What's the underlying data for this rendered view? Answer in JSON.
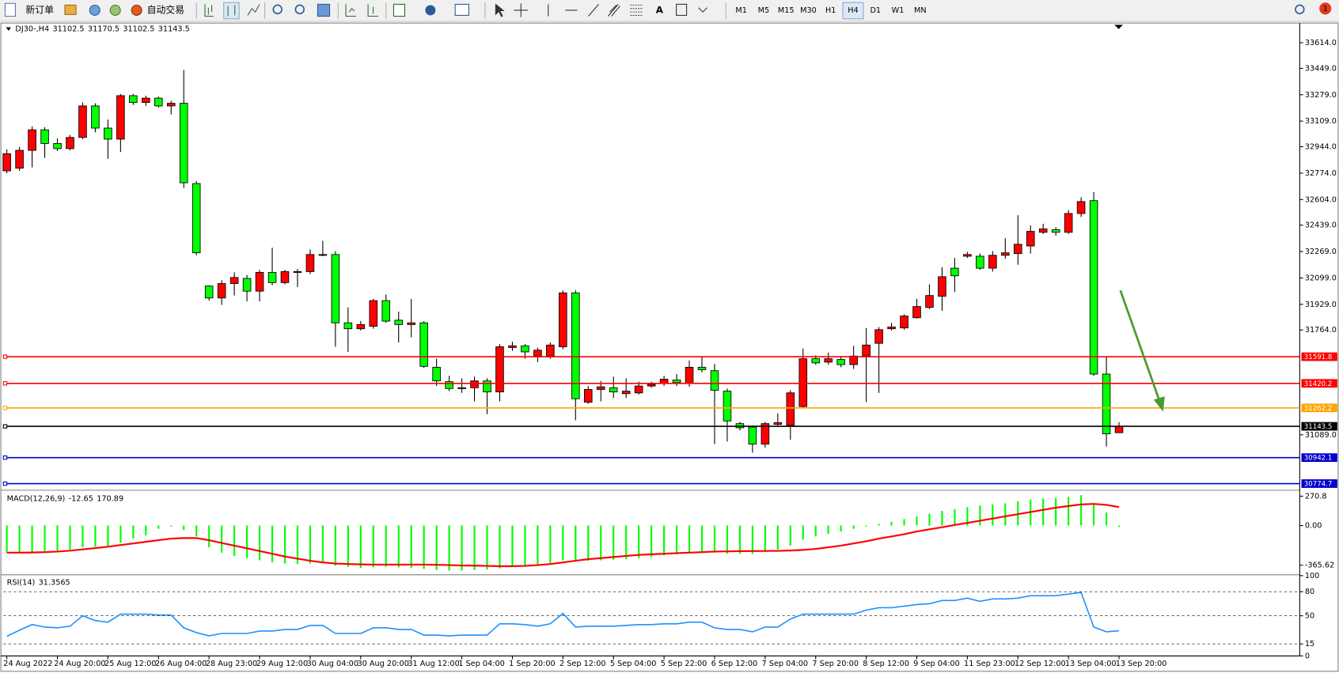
{
  "toolbar": {
    "buttons": [
      "新订单",
      "自动交易"
    ],
    "timeframes": [
      "M1",
      "M5",
      "M15",
      "M30",
      "H1",
      "H4",
      "D1",
      "W1",
      "MN"
    ],
    "active": "H4",
    "notifications": 1
  },
  "chart_data": [
    {
      "type": "candlestick",
      "symbol": "DJ30-,H4",
      "categories": [
        "24 Aug 2022",
        null,
        null,
        null,
        "24 Aug 20:00",
        null,
        null,
        null,
        "25 Aug 12:00",
        null,
        null,
        null,
        "26 Aug 04:00",
        null,
        null,
        null,
        "28 Aug 23:00",
        null,
        null,
        null,
        "29 Aug 12:00",
        null,
        null,
        null,
        "30 Aug 04:00",
        null,
        null,
        null,
        "30 Aug 20:00",
        null,
        null,
        null,
        "31 Aug 12:00",
        null,
        null,
        null,
        "1 Sep 04:00",
        null,
        null,
        null,
        "1 Sep 20:00",
        null,
        null,
        null,
        "2 Sep 12:00",
        null,
        null,
        null,
        "5 Sep 04:00",
        null,
        null,
        null,
        "5 Sep 22:00",
        null,
        null,
        null,
        "6 Sep 12:00",
        null,
        null,
        null,
        "7 Sep 04:00",
        null,
        null,
        null,
        "7 Sep 20:00",
        null,
        null,
        null,
        "8 Sep 12:00",
        null,
        null,
        null,
        "9 Sep 04:00",
        null,
        null,
        null,
        "11 Sep 23:00",
        null,
        null,
        null,
        "12 Sep 12:00",
        null,
        null,
        null,
        "13 Sep 04:00",
        null,
        null,
        null,
        "13 Sep 20:00"
      ],
      "open": [
        32789,
        32806,
        32921,
        33053,
        32965,
        32932,
        33004,
        33207,
        33064,
        32993,
        33273,
        33229,
        33257,
        33207,
        33224,
        32707,
        32047,
        31970,
        32063,
        32096,
        32014,
        32135,
        32069,
        32135,
        32140,
        32245,
        32250,
        31810,
        31772,
        31788,
        31953,
        31827,
        31799,
        31810,
        31524,
        31431,
        31387,
        31392,
        31436,
        31365,
        31651,
        31662,
        31596,
        31596,
        31656,
        32003,
        31299,
        31381,
        31392,
        31354,
        31359,
        31403,
        31420,
        31442,
        31420,
        31524,
        31502,
        31370,
        31161,
        31139,
        31029,
        31156,
        31150,
        31271,
        31579,
        31557,
        31574,
        31541,
        31596,
        31678,
        31772,
        31777,
        31843,
        31909,
        31981,
        32162,
        32239,
        32239,
        32162,
        32245,
        32256,
        32305,
        32393,
        32410,
        32393,
        32514,
        32597,
        31480,
        31102.5
      ],
      "high": [
        32927,
        32943,
        33075,
        33070,
        32998,
        33020,
        33229,
        33224,
        33119,
        33284,
        33284,
        33273,
        33268,
        33240,
        33438,
        32723,
        32052,
        32085,
        32135,
        32118,
        32151,
        32294,
        32151,
        32157,
        32283,
        32338,
        32272,
        31909,
        31821,
        31964,
        31992,
        31882,
        31964,
        31821,
        31579,
        31469,
        31453,
        31464,
        31453,
        31673,
        31689,
        31673,
        31651,
        31684,
        32019,
        32019,
        31403,
        31436,
        31464,
        31453,
        31431,
        31431,
        31469,
        31480,
        31568,
        31590,
        31546,
        31387,
        31172,
        31150,
        31172,
        31227,
        31376,
        31645,
        31601,
        31618,
        31596,
        31662,
        31777,
        31783,
        31810,
        31865,
        31964,
        32058,
        32168,
        32228,
        32267,
        32256,
        32272,
        32355,
        32503,
        32437,
        32448,
        32426,
        32536,
        32619,
        32652,
        31590,
        31170.5
      ],
      "low": [
        32773,
        32789,
        32811,
        32872,
        32916,
        32921,
        32993,
        33037,
        32866,
        32910,
        33213,
        33207,
        33196,
        33152,
        32679,
        32245,
        31953,
        31926,
        31986,
        31948,
        31948,
        32052,
        32058,
        32041,
        32124,
        32239,
        31656,
        31623,
        31761,
        31772,
        31810,
        31684,
        31717,
        31519,
        31403,
        31370,
        31359,
        31304,
        31222,
        31304,
        31629,
        31579,
        31557,
        31579,
        31640,
        31183,
        31288,
        31304,
        31326,
        31326,
        31348,
        31392,
        31403,
        31403,
        31398,
        31491,
        31029,
        31046,
        31117,
        30974,
        31007,
        31139,
        31057,
        31260,
        31541,
        31541,
        31524,
        31513,
        31299,
        31359,
        31761,
        31766,
        31838,
        31898,
        31887,
        32008,
        32228,
        32151,
        32140,
        32223,
        32184,
        32256,
        32382,
        32371,
        32382,
        32492,
        31469,
        31013,
        31102.5
      ],
      "close": [
        32899,
        32921,
        33053,
        32965,
        32932,
        33004,
        33207,
        33064,
        32993,
        33273,
        33229,
        33257,
        33207,
        33224,
        32712,
        32261,
        31970,
        32063,
        32102,
        32014,
        32135,
        32069,
        32140,
        32140,
        32250,
        32250,
        31810,
        31772,
        31799,
        31953,
        31821,
        31799,
        31810,
        31530,
        31436,
        31387,
        31392,
        31436,
        31365,
        31656,
        31662,
        31623,
        31634,
        31667,
        32003,
        31321,
        31381,
        31398,
        31365,
        31370,
        31403,
        31414,
        31447,
        31425,
        31524,
        31508,
        31376,
        31178,
        31134,
        31029,
        31161,
        31167,
        31359,
        31579,
        31552,
        31579,
        31541,
        31596,
        31667,
        31766,
        31783,
        31854,
        31915,
        31986,
        32107,
        32113,
        32250,
        32162,
        32245,
        32261,
        32316,
        32399,
        32415,
        32393,
        32514,
        32591,
        31480,
        31095,
        31143.5
      ],
      "up_color": "#ff0000",
      "down_color": "#00ff00",
      "ylim": [
        30743,
        33735
      ],
      "yticks": [
        {
          "value": 33614,
          "label": "33614.0"
        },
        {
          "value": 33449,
          "label": "33449.0"
        },
        {
          "value": 33279,
          "label": "33279.0"
        },
        {
          "value": 33109,
          "label": "33109.0"
        },
        {
          "value": 32944,
          "label": "32944.0"
        },
        {
          "value": 32774,
          "label": "32774.0"
        },
        {
          "value": 32604,
          "label": "32604.0"
        },
        {
          "value": 32439,
          "label": "32439.0"
        },
        {
          "value": 32269,
          "label": "32269.0"
        },
        {
          "value": 32099,
          "label": "32099.0"
        },
        {
          "value": 31929,
          "label": "31929.0"
        },
        {
          "value": 31764,
          "label": "31764.0"
        },
        {
          "value": 31089,
          "label": "31089.0"
        }
      ],
      "lines": [
        {
          "value": 31591.8,
          "color": "#ff0000"
        },
        {
          "value": 31420.2,
          "color": "#ff0000"
        },
        {
          "value": 31262.2,
          "color": "#ffa500"
        },
        {
          "value": 31143.5,
          "color": "#000000"
        },
        {
          "value": 30942.1,
          "color": "#0000cc"
        },
        {
          "value": 30774.7,
          "color": "#0000cc"
        }
      ],
      "grid": false
    },
    {
      "type": "macd",
      "name": "MACD(12,26,9)",
      "series": [
        {
          "color": "#00ff00",
          "values": [
            -250,
            -255,
            -245,
            -235,
            -230,
            -220,
            -200,
            -195,
            -190,
            -160,
            -120,
            -90,
            -30,
            -10,
            -40,
            -100,
            -200,
            -250,
            -280,
            -300,
            -320,
            -340,
            -350,
            -355,
            -350,
            -345,
            -370,
            -380,
            -390,
            -385,
            -380,
            -385,
            -390,
            -400,
            -410,
            -415,
            -415,
            -410,
            -405,
            -395,
            -380,
            -370,
            -360,
            -345,
            -320,
            -330,
            -325,
            -320,
            -315,
            -310,
            -300,
            -290,
            -275,
            -265,
            -250,
            -240,
            -250,
            -260,
            -260,
            -260,
            -245,
            -220,
            -185,
            -130,
            -100,
            -75,
            -55,
            -30,
            -10,
            15,
            35,
            60,
            85,
            110,
            135,
            150,
            170,
            185,
            195,
            205,
            225,
            240,
            250,
            255,
            265,
            280,
            200,
            120,
            -12.65
          ]
        },
        {
          "color": "#ff0000",
          "values": [
            -250,
            -250,
            -248,
            -245,
            -240,
            -232,
            -220,
            -208,
            -195,
            -180,
            -165,
            -150,
            -135,
            -120,
            -115,
            -115,
            -135,
            -160,
            -185,
            -210,
            -235,
            -260,
            -285,
            -305,
            -325,
            -340,
            -350,
            -355,
            -358,
            -360,
            -360,
            -360,
            -360,
            -360,
            -362,
            -365,
            -368,
            -370,
            -372,
            -375,
            -375,
            -372,
            -365,
            -355,
            -340,
            -325,
            -310,
            -300,
            -290,
            -280,
            -270,
            -265,
            -260,
            -255,
            -250,
            -245,
            -240,
            -238,
            -236,
            -235,
            -234,
            -233,
            -230,
            -225,
            -215,
            -200,
            -185,
            -165,
            -145,
            -120,
            -100,
            -80,
            -55,
            -35,
            -15,
            5,
            25,
            45,
            65,
            85,
            105,
            125,
            145,
            165,
            180,
            195,
            200,
            190,
            170.89
          ]
        }
      ],
      "ylim": [
        -446,
        310
      ],
      "yticks": [
        270.8,
        {
          "value": 0,
          "label": "0.00"
        },
        -365.62
      ],
      "grid": false
    },
    {
      "type": "line",
      "name": "RSI(14)",
      "series": [
        {
          "color": "#1e90ff",
          "values": [
            24.5,
            32,
            39,
            36,
            35,
            37,
            50,
            44,
            42,
            52,
            52,
            52,
            51,
            51,
            35,
            29,
            25,
            28,
            28,
            28,
            31,
            31,
            33,
            33,
            38,
            38,
            28,
            28,
            28,
            35,
            35,
            33,
            33,
            26,
            26,
            25,
            26,
            26,
            26,
            40,
            40,
            39,
            37,
            40,
            53,
            36,
            37,
            37,
            37,
            38,
            39,
            39,
            40,
            40,
            42,
            42,
            35,
            33,
            33,
            30,
            36,
            36,
            46,
            52,
            52,
            52,
            52,
            52,
            57,
            60,
            60,
            62,
            64,
            65,
            69,
            69,
            72,
            68,
            71,
            71,
            72,
            75,
            75,
            75,
            77,
            79,
            36,
            30,
            31.3565
          ]
        }
      ],
      "ylim": [
        0,
        100
      ],
      "yticks": [
        100,
        80,
        50,
        15,
        0
      ],
      "grid": true
    }
  ]
}
